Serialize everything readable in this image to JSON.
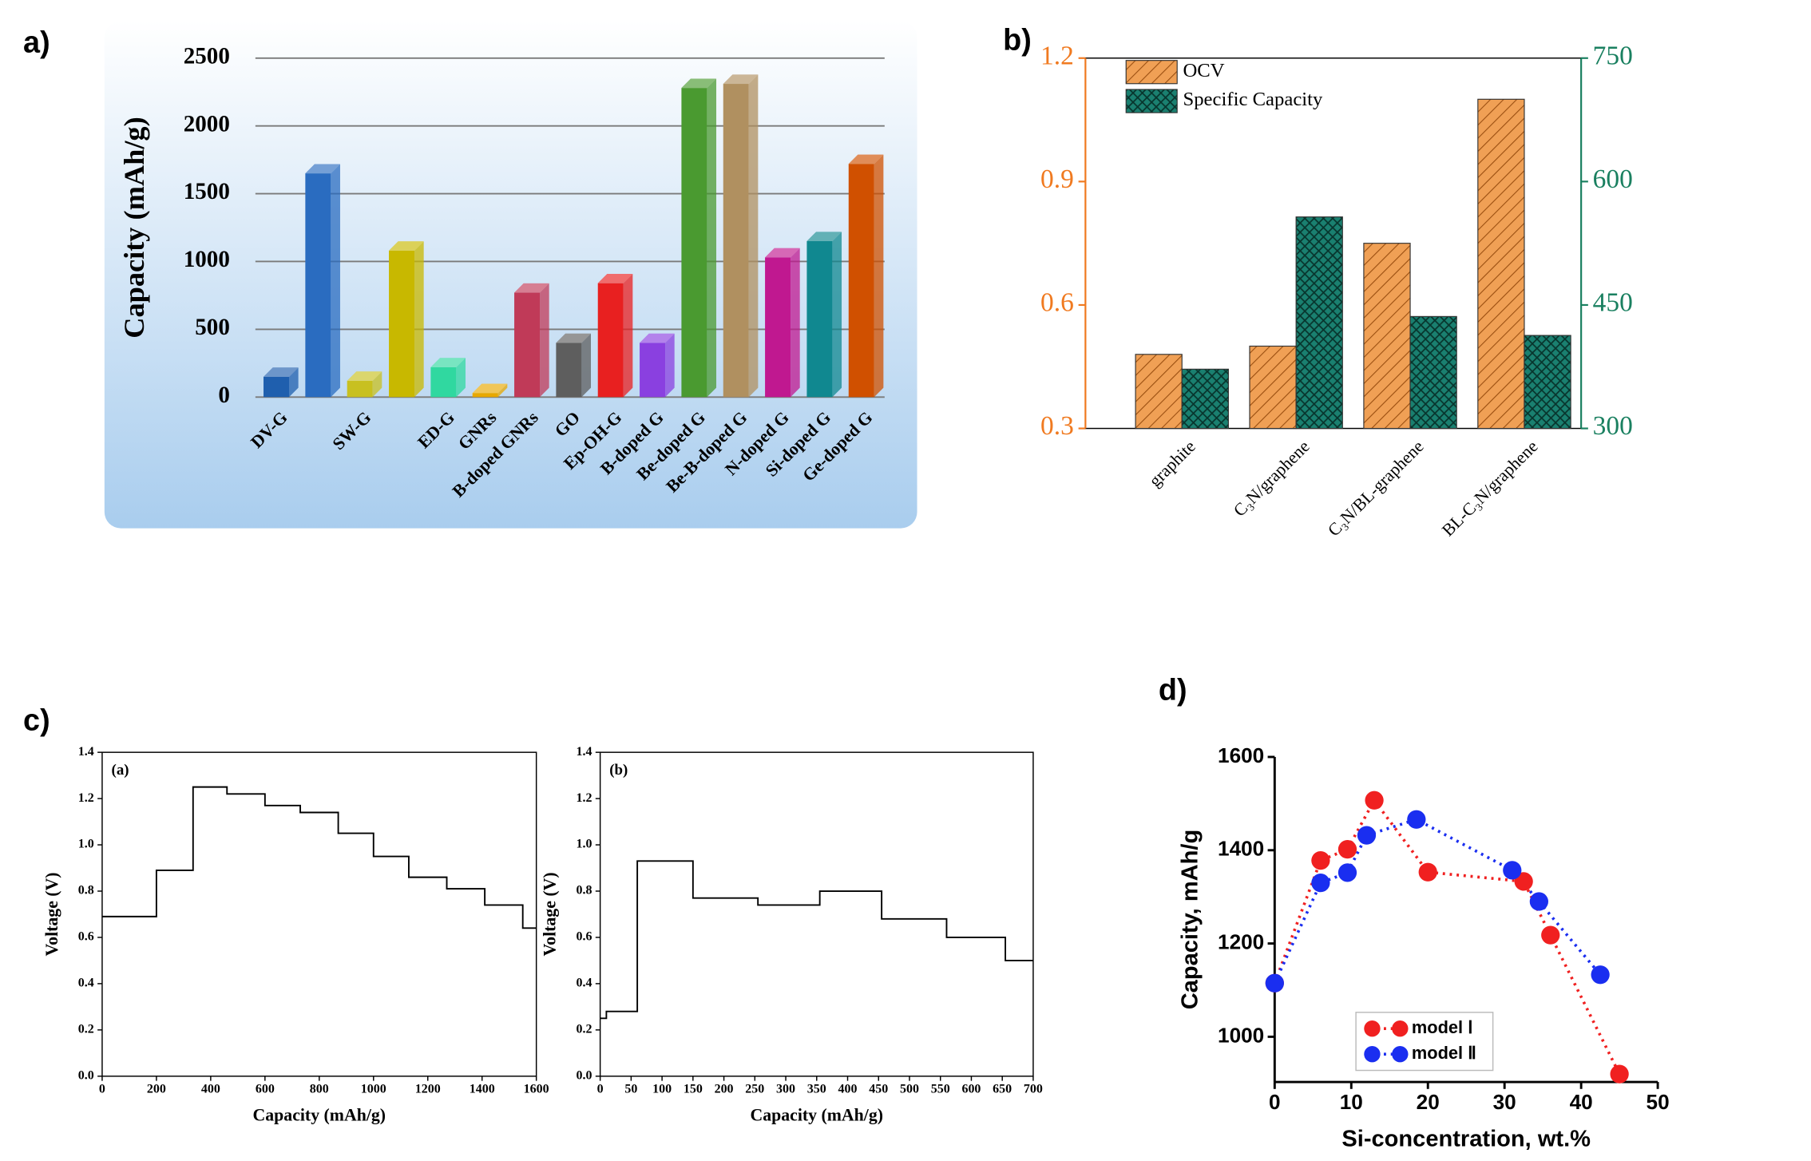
{
  "panel_labels": [
    "a)",
    "b)",
    "c)",
    "d)"
  ],
  "chart_data": [
    {
      "type": "bar",
      "ylabel": "Capacity (mAh/g)",
      "categories": [
        "DV-G",
        null,
        "SW-G",
        null,
        "ED-G",
        "GNRs",
        "B-doped GNRs",
        "GO",
        "Ep-OH-G",
        "B-doped G",
        "Be-doped G",
        "Be-B-doped G",
        "N-doped G",
        "Si-doped G",
        "Ge-doped G"
      ],
      "values": [
        150,
        1650,
        120,
        1080,
        220,
        30,
        770,
        400,
        840,
        400,
        2280,
        2310,
        1030,
        1150,
        1720
      ],
      "colors": [
        "#1f5fae",
        "#2a6cc0",
        "#c8c020",
        "#c8b800",
        "#30d8a0",
        "#e8a800",
        "#c03a58",
        "#5e5e5e",
        "#e82020",
        "#8a40e0",
        "#4a9a30",
        "#b09060",
        "#c01890",
        "#108890",
        "#d05000"
      ],
      "ylim": [
        0,
        2500
      ],
      "yticks": [
        0,
        500,
        1000,
        1500,
        2000,
        2500
      ],
      "grid": true
    },
    {
      "type": "bar",
      "categories": [
        "graphite",
        "C₃N/graphene",
        "C₃N/BL-graphene",
        "BL-C₃N/graphene"
      ],
      "series": [
        {
          "name": "OCV",
          "color": "#f0a055",
          "values": [
            0.48,
            0.5,
            0.75,
            1.1
          ]
        },
        {
          "name": "Specific Capacity",
          "color": "#1a8070",
          "axis": "y2",
          "values": [
            372,
            557,
            436,
            413
          ]
        }
      ],
      "ylim": [
        0.3,
        1.2
      ],
      "yticks": [
        0.3,
        0.6,
        0.9,
        1.2
      ],
      "ycolor": "#f07a20",
      "y2lim": [
        300,
        750
      ],
      "y2ticks": [
        300,
        450,
        600,
        750
      ],
      "y2color": "#1a8060",
      "legend": "top-left"
    },
    {
      "type": "line",
      "annotation": "(a)",
      "xlabel": "Capacity (mAh/g)",
      "ylabel": "Voltage (V)",
      "color": "#000000",
      "x": [
        0,
        200,
        200,
        335,
        335,
        460,
        460,
        600,
        600,
        730,
        730,
        870,
        870,
        1000,
        1000,
        1130,
        1130,
        1270,
        1270,
        1410,
        1410,
        1550,
        1550,
        1600
      ],
      "values": [
        0.69,
        0.69,
        0.89,
        0.89,
        1.25,
        1.25,
        1.22,
        1.22,
        1.17,
        1.17,
        1.14,
        1.14,
        1.05,
        1.05,
        0.95,
        0.95,
        0.86,
        0.86,
        0.81,
        0.81,
        0.74,
        0.74,
        0.64,
        0.64
      ],
      "xlim": [
        0,
        1600
      ],
      "xticks": [
        0,
        200,
        400,
        600,
        800,
        1000,
        1200,
        1400,
        1600
      ],
      "ylim": [
        0,
        1.4
      ],
      "yticks": [
        {
          "value": 0,
          "label": "0.0"
        },
        0.2,
        0.4,
        0.6,
        0.8,
        {
          "value": 1,
          "label": "1.0"
        },
        1.2,
        1.4
      ]
    },
    {
      "type": "line",
      "annotation": "(b)",
      "xlabel": "Capacity (mAh/g)",
      "ylabel": "Voltage (V)",
      "color": "#000000",
      "x": [
        0,
        10,
        10,
        60,
        60,
        150,
        150,
        255,
        255,
        355,
        355,
        455,
        455,
        560,
        560,
        655,
        655,
        700
      ],
      "values": [
        0.25,
        0.25,
        0.28,
        0.28,
        0.93,
        0.93,
        0.77,
        0.77,
        0.74,
        0.74,
        0.8,
        0.8,
        0.68,
        0.68,
        0.6,
        0.6,
        0.5,
        0.5
      ],
      "xlim": [
        0,
        700
      ],
      "xticks": [
        0,
        50,
        100,
        150,
        200,
        250,
        300,
        350,
        400,
        450,
        500,
        550,
        600,
        650,
        700
      ],
      "ylim": [
        0,
        1.4
      ],
      "yticks": [
        {
          "value": 0,
          "label": "0.0"
        },
        0.2,
        0.4,
        0.6,
        0.8,
        {
          "value": 1,
          "label": "1.0"
        },
        1.2,
        1.4
      ]
    },
    {
      "type": "scatter",
      "xlabel": "Si-concentration, wt.%",
      "ylabel": "Capacity, mAh/g",
      "series": [
        {
          "name": "model Ⅰ",
          "color": "#f02020",
          "x": [
            0,
            6,
            9.5,
            13,
            20,
            32.5,
            36,
            45
          ],
          "values": [
            1115,
            1378,
            1402,
            1507,
            1353,
            1333,
            1218,
            920
          ]
        },
        {
          "name": "model Ⅱ",
          "color": "#1a2ef0",
          "x": [
            0,
            6,
            9.5,
            12,
            18.5,
            31,
            34.5,
            42.5
          ],
          "values": [
            1115,
            1330,
            1352,
            1432,
            1466,
            1357,
            1290,
            1133
          ]
        }
      ],
      "xlim": [
        0,
        50
      ],
      "xticks": [
        0,
        10,
        20,
        30,
        40,
        50
      ],
      "ylim": [
        903,
        1600
      ],
      "yticks": [
        1000,
        1200,
        1400,
        1600
      ],
      "legend": "bottom-left"
    }
  ]
}
